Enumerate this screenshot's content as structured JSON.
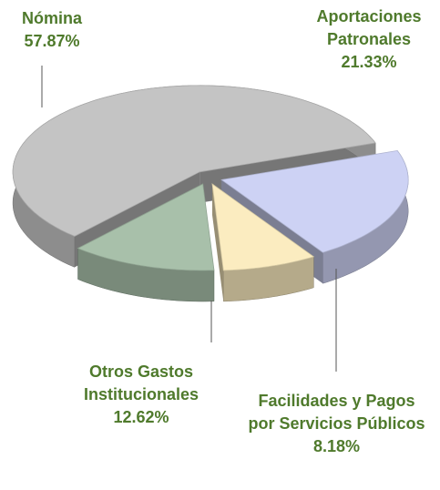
{
  "chart_data": {
    "type": "pie",
    "categories": [
      "Nómina",
      "Aportaciones Patronales",
      "Facilidades y Pagos por Servicios Públicos",
      "Otros Gastos Institucionales"
    ],
    "values": [
      57.87,
      21.33,
      8.18,
      12.62
    ],
    "value_labels": [
      "57.87%",
      "21.33%",
      "8.18%",
      "12.62%"
    ],
    "colors": [
      "#c4c4c4",
      "#cdd2f4",
      "#fbecc0",
      "#a8c0aa"
    ]
  }
}
